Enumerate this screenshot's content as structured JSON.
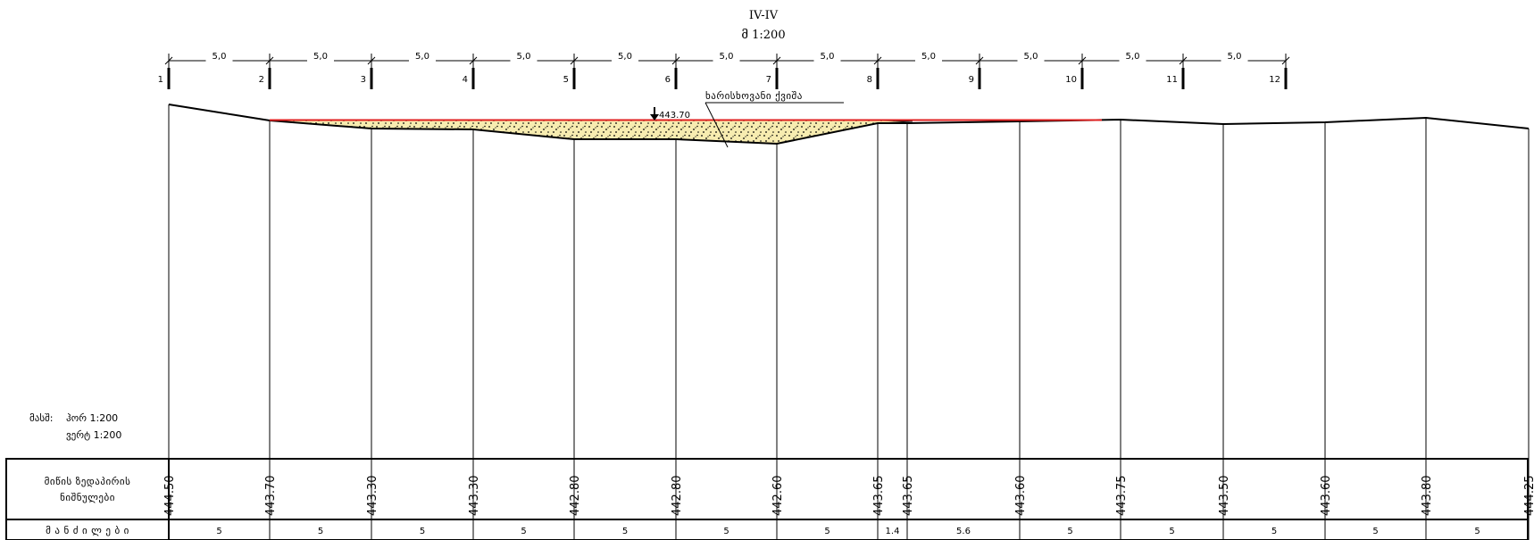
{
  "section_title": "IV-IV",
  "scale_line": "მ 1:200",
  "spacing_labels": [
    "5,0",
    "5,0",
    "5,0",
    "5,0",
    "5,0",
    "5,0",
    "5,0",
    "5,0",
    "5,0",
    "5,0",
    "5,0"
  ],
  "stations": [
    "1",
    "2",
    "3",
    "4",
    "5",
    "6",
    "7",
    "8",
    "9",
    "10",
    "11",
    "12"
  ],
  "water_level": "443.70",
  "material_label": "ხარისხოვანი ქვიშა",
  "scale_note": {
    "label": "მასშ:",
    "horizontal": "ჰორ 1:200",
    "vertical": "ვერტ 1:200"
  },
  "table": {
    "row1_label_line1": "მიწის ზედაპირის",
    "row1_label_line2": "ნიშნულები",
    "row2_label": "მ ა ნ ძ ი ლ ე ბ ი",
    "elevations": [
      "444.50",
      "443.70",
      "443.30",
      "443.30",
      "442.80",
      "442.80",
      "442.60",
      "443.65",
      "443.65",
      "443.60",
      "443.75",
      "443.50",
      "443.60",
      "443.80",
      "444.25"
    ],
    "distances": [
      "5",
      "5",
      "5",
      "5",
      "5",
      "5",
      "5",
      "1.4",
      "5.6",
      "5",
      "5",
      "5",
      "5",
      "5"
    ]
  },
  "colors": {
    "fill": "#f7ecb0",
    "water_line": "#e02020",
    "lines": "#000000"
  }
}
